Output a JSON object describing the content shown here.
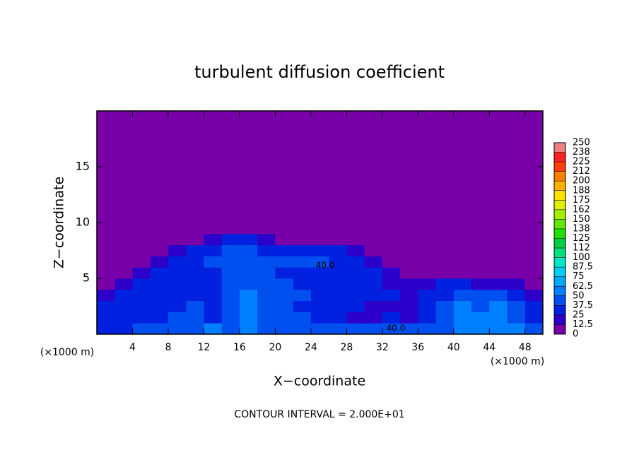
{
  "chart_data": {
    "type": "heatmap",
    "title": "turbulent diffusion coefficient",
    "x_label": "X−coordinate",
    "y_label": "Z−coordinate",
    "x_unit_left": "(×1000 m)",
    "x_unit_right": "(×1000 m)",
    "footer": "CONTOUR INTERVAL = 2.000E+01",
    "annotations": [
      "40.0",
      "40.0"
    ],
    "xlim": [
      0,
      50
    ],
    "ylim": [
      0,
      20
    ],
    "xticks": [
      4,
      8,
      12,
      16,
      20,
      24,
      28,
      32,
      36,
      40,
      44,
      48
    ],
    "yticks": [
      5,
      10,
      15
    ],
    "x_bins": [
      0,
      2,
      4,
      6,
      8,
      10,
      12,
      14,
      16,
      18,
      20,
      22,
      24,
      26,
      28,
      30,
      32,
      34,
      36,
      38,
      40,
      42,
      44,
      46,
      48,
      50
    ],
    "y_bins": [
      0,
      1,
      2,
      3,
      4,
      5,
      6,
      7,
      8,
      9,
      20
    ],
    "z": [
      [
        30,
        35,
        40,
        45,
        40,
        45,
        50,
        45,
        50,
        45,
        45,
        45,
        40,
        40,
        45,
        40,
        40,
        40,
        40,
        45,
        50,
        55,
        60,
        50,
        40
      ],
      [
        30,
        25,
        30,
        35,
        40,
        40,
        35,
        45,
        55,
        45,
        40,
        40,
        30,
        25,
        20,
        20,
        25,
        20,
        30,
        45,
        60,
        50,
        60,
        45,
        30
      ],
      [
        25,
        25,
        30,
        30,
        35,
        40,
        35,
        45,
        55,
        45,
        40,
        35,
        30,
        30,
        25,
        20,
        20,
        20,
        30,
        40,
        55,
        40,
        55,
        40,
        25
      ],
      [
        20,
        25,
        30,
        30,
        35,
        35,
        35,
        40,
        50,
        40,
        45,
        45,
        35,
        35,
        30,
        25,
        25,
        20,
        25,
        30,
        45,
        40,
        40,
        30,
        20
      ],
      [
        10,
        15,
        25,
        30,
        30,
        35,
        35,
        40,
        45,
        40,
        40,
        35,
        30,
        35,
        30,
        25,
        20,
        15,
        20,
        25,
        25,
        20,
        20,
        15,
        10
      ],
      [
        5,
        10,
        15,
        25,
        30,
        35,
        35,
        40,
        45,
        40,
        35,
        35,
        35,
        35,
        30,
        25,
        15,
        10,
        10,
        10,
        10,
        10,
        10,
        5,
        5
      ],
      [
        0,
        5,
        10,
        20,
        30,
        35,
        40,
        40,
        45,
        40,
        40,
        40,
        40,
        35,
        30,
        20,
        10,
        5,
        5,
        5,
        5,
        5,
        5,
        0,
        0
      ],
      [
        0,
        0,
        5,
        10,
        20,
        30,
        35,
        40,
        40,
        35,
        35,
        35,
        30,
        25,
        20,
        10,
        5,
        0,
        0,
        0,
        0,
        0,
        0,
        0,
        0
      ],
      [
        0,
        0,
        0,
        0,
        5,
        10,
        20,
        30,
        25,
        15,
        10,
        10,
        10,
        5,
        5,
        0,
        0,
        0,
        0,
        0,
        0,
        0,
        0,
        0,
        0
      ],
      [
        0,
        0,
        0,
        0,
        0,
        0,
        0,
        0,
        0,
        0,
        0,
        0,
        0,
        0,
        0,
        0,
        0,
        0,
        0,
        0,
        0,
        0,
        0,
        0,
        0
      ]
    ],
    "colorbar_ticks": [
      0,
      12.5,
      25,
      37.5,
      50,
      62.5,
      75,
      87.5,
      100,
      {
        "value": 112.5,
        "label": "112"
      },
      125,
      {
        "value": 137.5,
        "label": "138"
      },
      150,
      {
        "value": 162.5,
        "label": "162"
      },
      175,
      {
        "value": 187.5,
        "label": "188"
      },
      200,
      {
        "value": 212.5,
        "label": "212"
      },
      225,
      {
        "value": 237.5,
        "label": "238"
      },
      250
    ],
    "colors": [
      "#7800a8",
      "#2c00c8",
      "#0022e0",
      "#0050f0",
      "#0080ff",
      "#00a8ff",
      "#00d0ff",
      "#00e8c8",
      "#00e080",
      "#00d040",
      "#20e000",
      "#60e800",
      "#a0f000",
      "#e0f000",
      "#ffe000",
      "#ffb000",
      "#ff8000",
      "#ff4000",
      "#ff2020",
      "#f08080"
    ]
  }
}
